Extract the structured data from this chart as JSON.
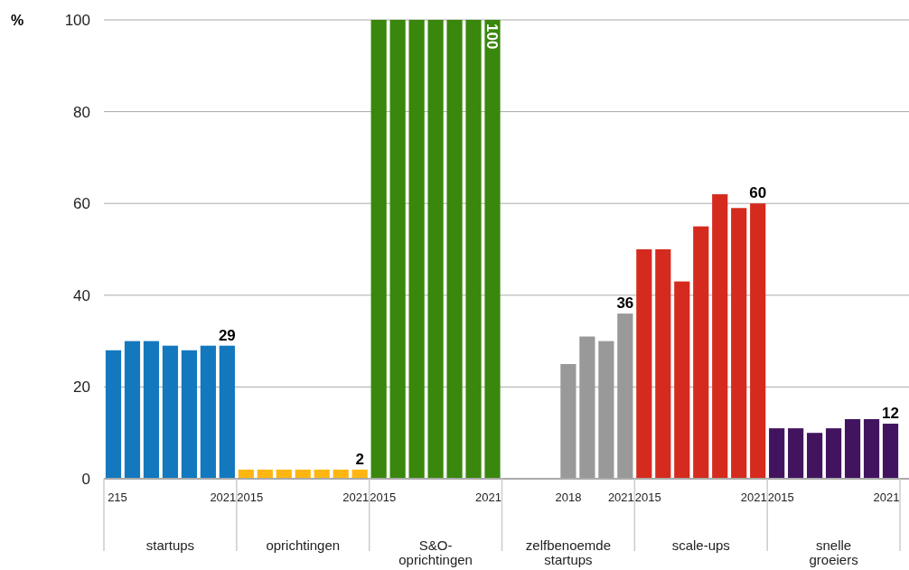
{
  "chart_data": {
    "type": "bar",
    "ylabel": "%",
    "categories": [
      "215",
      null,
      null,
      null,
      null,
      null,
      "2021",
      "2015",
      null,
      null,
      null,
      null,
      null,
      "2021",
      "2015",
      null,
      null,
      null,
      null,
      null,
      "2021",
      null,
      null,
      null,
      "2018",
      null,
      null,
      "2021",
      "2015",
      null,
      null,
      null,
      null,
      null,
      "2021",
      "2015",
      null,
      null,
      null,
      null,
      null,
      "2021"
    ],
    "values": [
      28,
      30,
      30,
      29,
      28,
      29,
      29,
      2,
      2,
      2,
      2,
      2,
      2,
      2,
      100,
      100,
      100,
      100,
      100,
      100,
      100,
      null,
      null,
      null,
      25,
      31,
      30,
      36,
      50,
      50,
      43,
      55,
      62,
      59,
      60,
      11,
      11,
      10,
      11,
      13,
      13,
      12
    ],
    "colors": [
      "#1478be",
      "#1478be",
      "#1478be",
      "#1478be",
      "#1478be",
      "#1478be",
      "#1478be",
      "#ffb612",
      "#ffb612",
      "#ffb612",
      "#ffb612",
      "#ffb612",
      "#ffb612",
      "#ffb612",
      "#39870c",
      "#39870c",
      "#39870c",
      "#39870c",
      "#39870c",
      "#39870c",
      "#39870c",
      null,
      null,
      null,
      "#999999",
      "#999999",
      "#999999",
      "#999999",
      "#d52b1e",
      "#d52b1e",
      "#d52b1e",
      "#d52b1e",
      "#d52b1e",
      "#d52b1e",
      "#d52b1e",
      "#42145f",
      "#42145f",
      "#42145f",
      "#42145f",
      "#42145f",
      "#42145f",
      "#42145f"
    ],
    "value_labels": [
      null,
      null,
      null,
      null,
      null,
      null,
      "29",
      null,
      null,
      null,
      null,
      null,
      null,
      "2",
      null,
      null,
      null,
      null,
      null,
      null,
      "100",
      null,
      null,
      null,
      null,
      null,
      null,
      "36",
      null,
      null,
      null,
      null,
      null,
      null,
      "60",
      null,
      null,
      null,
      null,
      null,
      null,
      "12"
    ],
    "annotations": [
      "startups",
      "oprichtingen",
      "S&O-oprichtingen",
      "zelfbenoemde startups",
      "scale-ups",
      "snelle groeiers"
    ],
    "ylim": [
      0,
      100
    ],
    "yticks": [
      0,
      20,
      40,
      60,
      80,
      100
    ],
    "grid": "y"
  }
}
